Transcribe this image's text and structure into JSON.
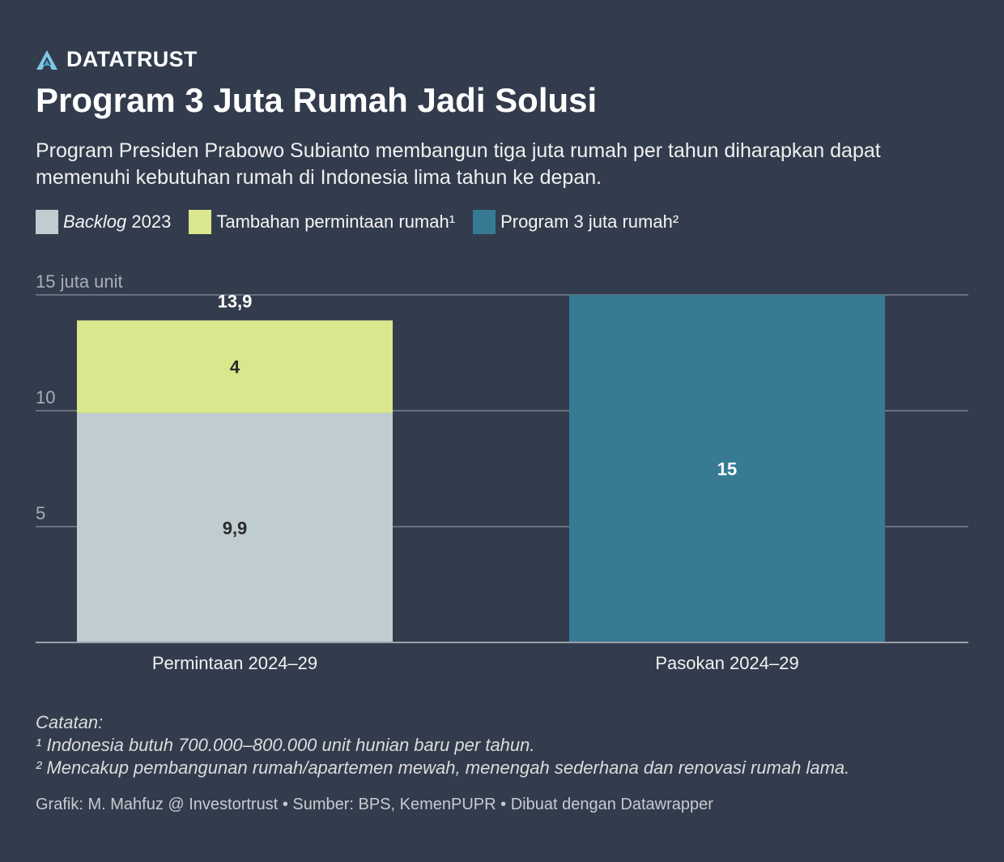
{
  "brand": {
    "name": "DATATRUST"
  },
  "title": "Program 3 Juta Rumah Jadi Solusi",
  "subtitle": "Program Presiden Prabowo Subianto membangun tiga juta rumah per tahun diharapkan dapat memenuhi kebutuhan rumah di Indonesia lima tahun ke depan.",
  "legend": {
    "backlog_italic": "Backlog",
    "backlog_rest": " 2023",
    "tambahan": "Tambahan permintaan rumah¹",
    "program": "Program 3 juta rumah²"
  },
  "colors": {
    "background": "#323c4d",
    "backlog": "#bfccd0",
    "tambahan": "#dbe78c",
    "program": "#377a94",
    "gridline": "#7a8290",
    "axis_text": "#a9aeb6"
  },
  "chart_data": {
    "type": "bar",
    "stacked": true,
    "ylabel": "juta unit",
    "ylim": [
      0,
      15
    ],
    "yticks": [
      {
        "value": 15,
        "label": "15 juta unit"
      },
      {
        "value": 10,
        "label": "10"
      },
      {
        "value": 5,
        "label": "5"
      }
    ],
    "categories": [
      "Permintaan 2024–29",
      "Pasokan 2024–29"
    ],
    "series": [
      {
        "name": "Backlog 2023",
        "color": "#bfccd0",
        "values": [
          9.9,
          0
        ],
        "labels": [
          "9,9",
          ""
        ],
        "label_color": "#2b2b2b"
      },
      {
        "name": "Tambahan permintaan rumah¹",
        "color": "#dbe78c",
        "values": [
          4,
          0
        ],
        "labels": [
          "4",
          ""
        ],
        "label_color": "#2b2b2b"
      },
      {
        "name": "Program 3 juta rumah²",
        "color": "#377a94",
        "values": [
          0,
          15
        ],
        "labels": [
          "",
          "15"
        ],
        "label_color": "#ffffff"
      }
    ],
    "totals": [
      {
        "value": 13.9,
        "label": "13,9"
      }
    ],
    "title": "Program 3 Juta Rumah Jadi Solusi"
  },
  "notes": {
    "heading": "Catatan:",
    "note1": "¹ Indonesia butuh 700.000–800.000 unit hunian baru per tahun.",
    "note2": "² Mencakup pembangunan rumah/apartemen mewah, menengah sederhana dan renovasi rumah lama."
  },
  "credit": "Grafik: M. Mahfuz @ Investortrust • Sumber: BPS, KemenPUPR • Dibuat dengan Datawrapper"
}
